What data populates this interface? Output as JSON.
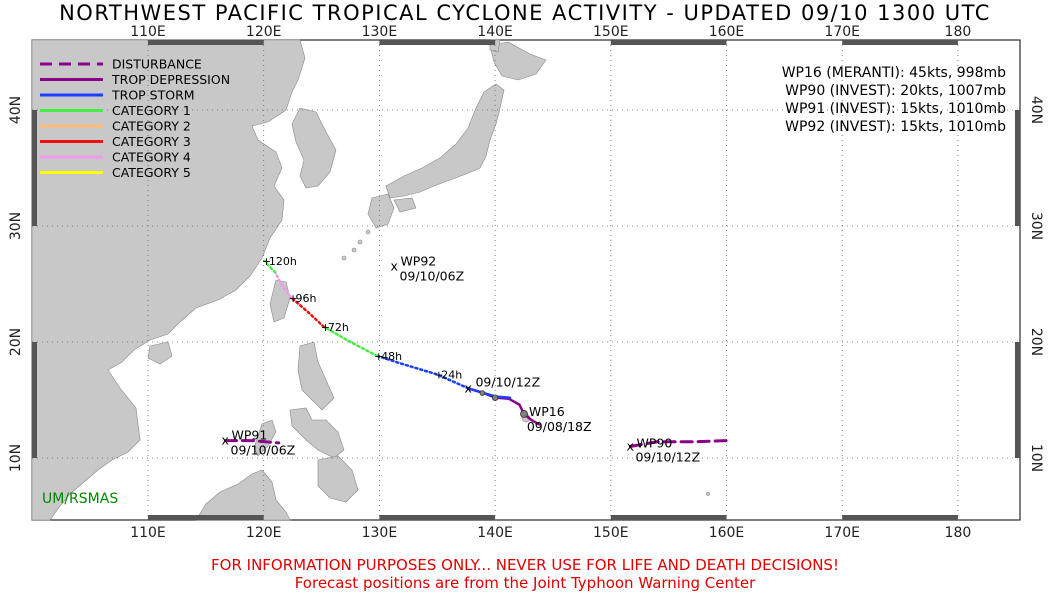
{
  "title": "NORTHWEST PACIFIC TROPICAL CYCLONE ACTIVITY - UPDATED 09/10 1300 UTC",
  "colors": {
    "land": "#c8c8c8",
    "ocean": "#ffffff",
    "disturbance": "#8b008b",
    "trop_depression": "#8b008b",
    "trop_storm": "#1a3fff",
    "category_1": "#44ee44",
    "category_2": "#ffbb77",
    "category_3": "#ee1111",
    "category_4": "#ee99ee",
    "category_5": "#ffff00",
    "credit": "#008800",
    "disclaimer": "#e00000"
  },
  "axes": {
    "lon_labels": [
      "110E",
      "120E",
      "130E",
      "140E",
      "150E",
      "160E",
      "170E",
      "180"
    ],
    "lat_labels": [
      "10N",
      "20N",
      "30N",
      "40N"
    ]
  },
  "legend": {
    "items": [
      {
        "label": "DISTURBANCE",
        "color_key": "disturbance",
        "style": "dashed"
      },
      {
        "label": "TROP DEPRESSION",
        "color_key": "trop_depression",
        "style": "solid"
      },
      {
        "label": "TROP STORM",
        "color_key": "trop_storm",
        "style": "solid"
      },
      {
        "label": "CATEGORY 1",
        "color_key": "category_1",
        "style": "solid"
      },
      {
        "label": "CATEGORY 2",
        "color_key": "category_2",
        "style": "solid"
      },
      {
        "label": "CATEGORY 3",
        "color_key": "category_3",
        "style": "solid"
      },
      {
        "label": "CATEGORY 4",
        "color_key": "category_4",
        "style": "solid"
      },
      {
        "label": "CATEGORY 5",
        "color_key": "category_5",
        "style": "solid"
      }
    ]
  },
  "storm_info": [
    "WP16 (MERANTI): 45kts, 998mb",
    "WP90 (INVEST): 20kts, 1007mb",
    "WP91 (INVEST): 15kts, 1010mb",
    "WP92 (INVEST): 15kts, 1010mb"
  ],
  "storms": {
    "wp16": {
      "name": "WP16",
      "start_time": "09/08/18Z",
      "current_time": "09/10/12Z",
      "lon": 142.4,
      "lat": 13.8
    },
    "wp90": {
      "name": "WP90",
      "time": "09/10/12Z",
      "lon": 151.7,
      "lat": 11.0
    },
    "wp91": {
      "name": "WP91",
      "time": "09/10/06Z",
      "lon": 116.7,
      "lat": 11.5
    },
    "wp92": {
      "name": "WP92",
      "time": "09/10/06Z",
      "lon": 131.3,
      "lat": 26.5
    }
  },
  "forecast_labels": [
    "+24h",
    "+48h",
    "+72h",
    "+96h",
    "+120h"
  ],
  "credit": "UM/RSMAS",
  "disclaimer_line1": "FOR INFORMATION PURPOSES ONLY... NEVER USE FOR LIFE AND DEATH DECISIONS!",
  "disclaimer_line2": "Forecast positions are from the Joint Typhoon Warning Center"
}
